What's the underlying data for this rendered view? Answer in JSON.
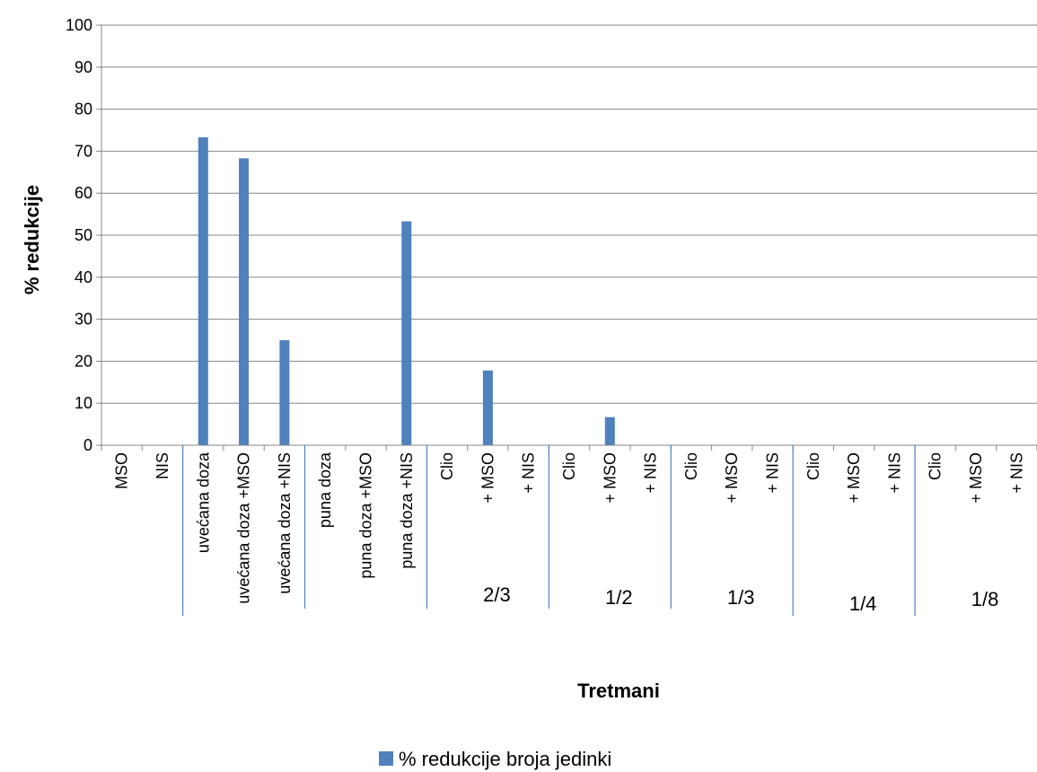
{
  "chart_data": {
    "type": "bar",
    "title": "",
    "xlabel": "Tretmani",
    "ylabel": "% redukcije",
    "ylim": [
      0,
      100
    ],
    "yticks": [
      0,
      10,
      20,
      30,
      40,
      50,
      60,
      70,
      80,
      90,
      100
    ],
    "grid": true,
    "legend_position": "bottom",
    "categories": [
      "MSO",
      "NIS",
      "uvećana doza",
      "uvećana doza +MSO",
      "uvećana doza +NIS",
      "puna doza",
      "puna doza +MSO",
      "puna doza +NIS",
      "Clio",
      "+ MSO",
      "+ NIS",
      "Clio",
      "+ MSO",
      "+ NIS",
      "Clio",
      "+ MSO",
      "+ NIS",
      "Clio",
      "+ MSO",
      "+ NIS",
      "Clio",
      "+ MSO",
      "+ NIS"
    ],
    "category_groups": [
      {
        "label": "",
        "size": 2
      },
      {
        "label": "",
        "size": 3
      },
      {
        "label": "",
        "size": 3
      },
      {
        "label": "2/3",
        "size": 3
      },
      {
        "label": "1/2",
        "size": 3
      },
      {
        "label": "1/3",
        "size": 3
      },
      {
        "label": "1/4",
        "size": 3
      },
      {
        "label": "1/8",
        "size": 3
      }
    ],
    "series": [
      {
        "name": "% redukcije broja jedinki",
        "color": "#4f81bd",
        "values": [
          0,
          0,
          73.3,
          68.3,
          25,
          0,
          0,
          53.3,
          0,
          17.8,
          0,
          0,
          6.7,
          0,
          0,
          0,
          0,
          0,
          0,
          0,
          0,
          0,
          0
        ]
      }
    ]
  }
}
